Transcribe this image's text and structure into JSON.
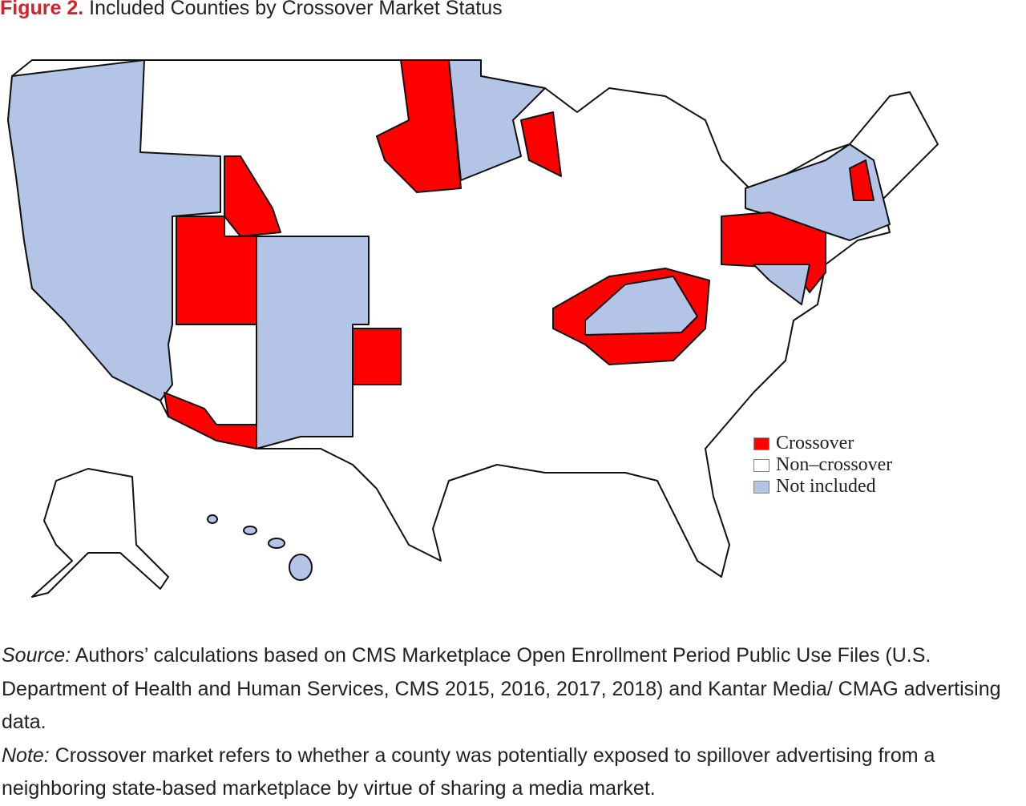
{
  "header": {
    "label": "Figure 2.",
    "title": "Included Counties by Crossover Market Status"
  },
  "legend": [
    {
      "label": "Crossover",
      "color": "#ff0000"
    },
    {
      "label": "Non–crossover",
      "color": "#ffffff"
    },
    {
      "label": "Not included",
      "color": "#b4c4e6"
    }
  ],
  "source": {
    "label": "Source:",
    "text": "Authors’ calculations based on CMS Marketplace Open Enrollment Period Public Use Files (U.S. Department of Health and Human Services, CMS 2015, 2016, 2017, 2018) and Kantar Media/ CMAG advertising data."
  },
  "note": {
    "label": "Note:",
    "text": "Crossover market refers to whether a county was potentially exposed to spillover advertising from a neighboring state-based marketplace by virtue of sharing a media market."
  }
}
